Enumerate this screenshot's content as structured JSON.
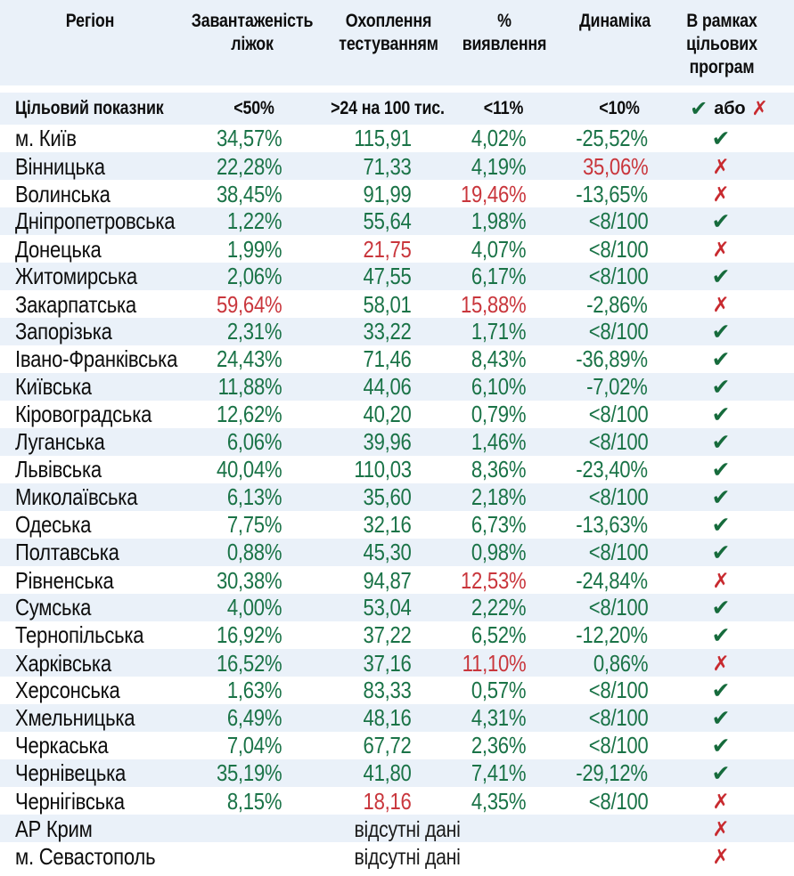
{
  "colors": {
    "stripe": "#eaf1f9",
    "green": "#1a7347",
    "red": "#c9363c",
    "check_green": "#166b3c",
    "cross_red": "#c82a2f",
    "text": "#0d0d0d"
  },
  "icons": {
    "check-icon": "✔",
    "cross-icon": "✗"
  },
  "chart_data": {
    "type": "table",
    "columns": [
      "Регіон",
      "Завантаженість\nліжок",
      "Охоплення\nтестуванням",
      "%\nвиявлення",
      "Динаміка",
      "В рамках\nцільових\nпрограм"
    ],
    "target_row": {
      "label": "Цільовий показник",
      "beds": "<50%",
      "coverage": ">24 на 100 тис.",
      "detection": "<11%",
      "dynamics": "<10%",
      "or_text": "або"
    },
    "rows": [
      {
        "region": "м. Київ",
        "vals": [
          [
            "34,57%",
            "g"
          ],
          [
            "115,91",
            "g"
          ],
          [
            "4,02%",
            "g"
          ],
          [
            "-25,52%",
            "g"
          ]
        ],
        "status": "check"
      },
      {
        "region": "Вінницька",
        "vals": [
          [
            "22,28%",
            "g"
          ],
          [
            "71,33",
            "g"
          ],
          [
            "4,19%",
            "g"
          ],
          [
            "35,06%",
            "r"
          ]
        ],
        "status": "cross"
      },
      {
        "region": "Волинська",
        "vals": [
          [
            "38,45%",
            "g"
          ],
          [
            "91,99",
            "g"
          ],
          [
            "19,46%",
            "r"
          ],
          [
            "-13,65%",
            "g"
          ]
        ],
        "status": "cross"
      },
      {
        "region": "Дніпропетровська",
        "vals": [
          [
            "1,22%",
            "g"
          ],
          [
            "55,64",
            "g"
          ],
          [
            "1,98%",
            "g"
          ],
          [
            "<8/100",
            "g"
          ]
        ],
        "status": "check"
      },
      {
        "region": "Донецька",
        "vals": [
          [
            "1,99%",
            "g"
          ],
          [
            "21,75",
            "r"
          ],
          [
            "4,07%",
            "g"
          ],
          [
            "<8/100",
            "g"
          ]
        ],
        "status": "cross"
      },
      {
        "region": "Житомирська",
        "vals": [
          [
            "2,06%",
            "g"
          ],
          [
            "47,55",
            "g"
          ],
          [
            "6,17%",
            "g"
          ],
          [
            "<8/100",
            "g"
          ]
        ],
        "status": "check"
      },
      {
        "region": "Закарпатська",
        "vals": [
          [
            "59,64%",
            "r"
          ],
          [
            "58,01",
            "g"
          ],
          [
            "15,88%",
            "r"
          ],
          [
            "-2,86%",
            "g"
          ]
        ],
        "status": "cross"
      },
      {
        "region": "Запорізька",
        "vals": [
          [
            "2,31%",
            "g"
          ],
          [
            "33,22",
            "g"
          ],
          [
            "1,71%",
            "g"
          ],
          [
            "<8/100",
            "g"
          ]
        ],
        "status": "check"
      },
      {
        "region": "Івано-Франківська",
        "vals": [
          [
            "24,43%",
            "g"
          ],
          [
            "71,46",
            "g"
          ],
          [
            "8,43%",
            "g"
          ],
          [
            "-36,89%",
            "g"
          ]
        ],
        "status": "check"
      },
      {
        "region": "Київська",
        "vals": [
          [
            "11,88%",
            "g"
          ],
          [
            "44,06",
            "g"
          ],
          [
            "6,10%",
            "g"
          ],
          [
            "-7,02%",
            "g"
          ]
        ],
        "status": "check"
      },
      {
        "region": "Кіровоградська",
        "vals": [
          [
            "12,62%",
            "g"
          ],
          [
            "40,20",
            "g"
          ],
          [
            "0,79%",
            "g"
          ],
          [
            "<8/100",
            "g"
          ]
        ],
        "status": "check"
      },
      {
        "region": "Луганська",
        "vals": [
          [
            "6,06%",
            "g"
          ],
          [
            "39,96",
            "g"
          ],
          [
            "1,46%",
            "g"
          ],
          [
            "<8/100",
            "g"
          ]
        ],
        "status": "check"
      },
      {
        "region": "Львівська",
        "vals": [
          [
            "40,04%",
            "g"
          ],
          [
            "110,03",
            "g"
          ],
          [
            "8,36%",
            "g"
          ],
          [
            "-23,40%",
            "g"
          ]
        ],
        "status": "check"
      },
      {
        "region": "Миколаївська",
        "vals": [
          [
            "6,13%",
            "g"
          ],
          [
            "35,60",
            "g"
          ],
          [
            "2,18%",
            "g"
          ],
          [
            "<8/100",
            "g"
          ]
        ],
        "status": "check"
      },
      {
        "region": "Одеська",
        "vals": [
          [
            "7,75%",
            "g"
          ],
          [
            "32,16",
            "g"
          ],
          [
            "6,73%",
            "g"
          ],
          [
            "-13,63%",
            "g"
          ]
        ],
        "status": "check"
      },
      {
        "region": "Полтавська",
        "vals": [
          [
            "0,88%",
            "g"
          ],
          [
            "45,30",
            "g"
          ],
          [
            "0,98%",
            "g"
          ],
          [
            "<8/100",
            "g"
          ]
        ],
        "status": "check"
      },
      {
        "region": "Рівненська",
        "vals": [
          [
            "30,38%",
            "g"
          ],
          [
            "94,87",
            "g"
          ],
          [
            "12,53%",
            "r"
          ],
          [
            "-24,84%",
            "g"
          ]
        ],
        "status": "cross"
      },
      {
        "region": "Сумська",
        "vals": [
          [
            "4,00%",
            "g"
          ],
          [
            "53,04",
            "g"
          ],
          [
            "2,22%",
            "g"
          ],
          [
            "<8/100",
            "g"
          ]
        ],
        "status": "check"
      },
      {
        "region": "Тернопільська",
        "vals": [
          [
            "16,92%",
            "g"
          ],
          [
            "37,22",
            "g"
          ],
          [
            "6,52%",
            "g"
          ],
          [
            "-12,20%",
            "g"
          ]
        ],
        "status": "check"
      },
      {
        "region": "Харківська",
        "vals": [
          [
            "16,52%",
            "g"
          ],
          [
            "37,16",
            "g"
          ],
          [
            "11,10%",
            "r"
          ],
          [
            "0,86%",
            "g"
          ]
        ],
        "status": "cross"
      },
      {
        "region": "Херсонська",
        "vals": [
          [
            "1,63%",
            "g"
          ],
          [
            "83,33",
            "g"
          ],
          [
            "0,57%",
            "g"
          ],
          [
            "<8/100",
            "g"
          ]
        ],
        "status": "check"
      },
      {
        "region": "Хмельницька",
        "vals": [
          [
            "6,49%",
            "g"
          ],
          [
            "48,16",
            "g"
          ],
          [
            "4,31%",
            "g"
          ],
          [
            "<8/100",
            "g"
          ]
        ],
        "status": "check"
      },
      {
        "region": "Черкаська",
        "vals": [
          [
            "7,04%",
            "g"
          ],
          [
            "67,72",
            "g"
          ],
          [
            "2,36%",
            "g"
          ],
          [
            "<8/100",
            "g"
          ]
        ],
        "status": "check"
      },
      {
        "region": "Чернівецька",
        "vals": [
          [
            "35,19%",
            "g"
          ],
          [
            "41,80",
            "g"
          ],
          [
            "7,41%",
            "g"
          ],
          [
            "-29,12%",
            "g"
          ]
        ],
        "status": "check"
      },
      {
        "region": "Чернігівська",
        "vals": [
          [
            "8,15%",
            "g"
          ],
          [
            "18,16",
            "r"
          ],
          [
            "4,35%",
            "g"
          ],
          [
            "<8/100",
            "g"
          ]
        ],
        "status": "cross"
      },
      {
        "region": "АР Крим",
        "note": "відсутні дані",
        "status": "cross"
      },
      {
        "region": "м. Севастополь",
        "note": "відсутні дані",
        "status": "cross"
      }
    ]
  }
}
